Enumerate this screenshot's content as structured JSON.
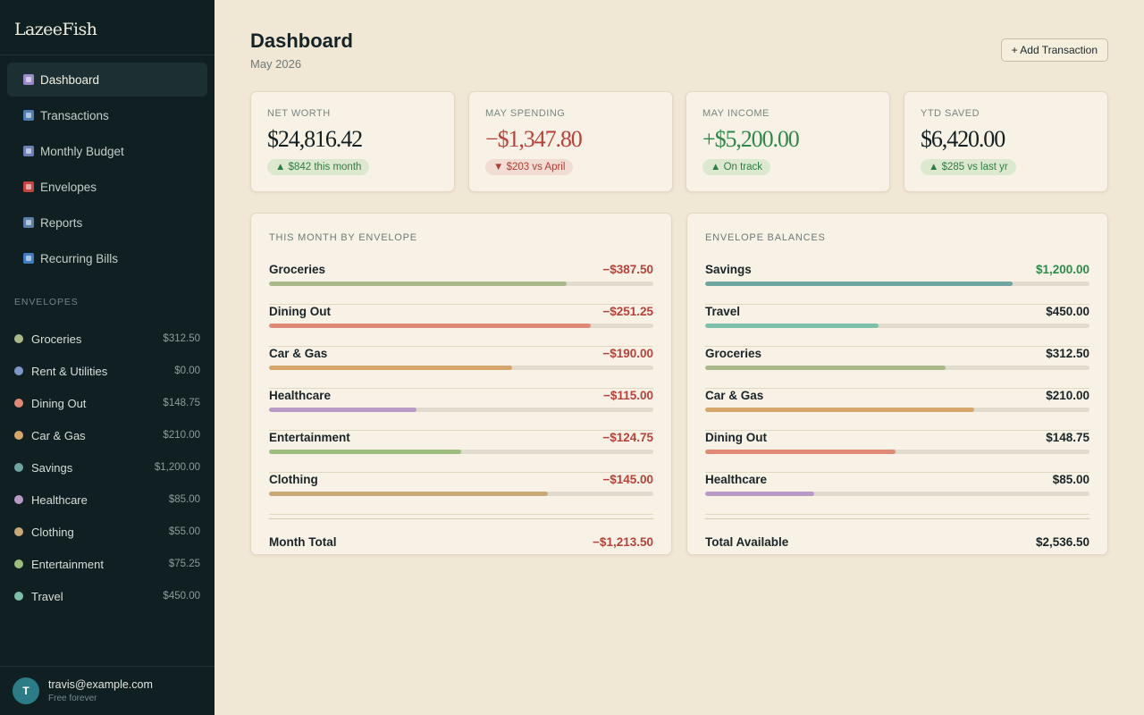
{
  "app": {
    "name": "LazeeFish"
  },
  "nav": {
    "items": [
      {
        "label": "Dashboard",
        "icon": "bar-chart-icon",
        "color": "#9b8ac9",
        "active": true
      },
      {
        "label": "Transactions",
        "icon": "credit-card-icon",
        "color": "#4f7fb0",
        "active": false
      },
      {
        "label": "Monthly Budget",
        "icon": "calendar-icon",
        "color": "#6c7fb6",
        "active": false
      },
      {
        "label": "Envelopes",
        "icon": "target-icon",
        "color": "#c6453f",
        "active": false
      },
      {
        "label": "Reports",
        "icon": "line-chart-icon",
        "color": "#5a7fa8",
        "active": false
      },
      {
        "label": "Recurring Bills",
        "icon": "repeat-icon",
        "color": "#3f7dbf",
        "active": false
      }
    ]
  },
  "envelopes": {
    "heading": "ENVELOPES",
    "items": [
      {
        "name": "Groceries",
        "amount": "$312.50",
        "color": "#a9b98a"
      },
      {
        "name": "Rent & Utilities",
        "amount": "$0.00",
        "color": "#7d97c7"
      },
      {
        "name": "Dining Out",
        "amount": "$148.75",
        "color": "#e08a76"
      },
      {
        "name": "Car & Gas",
        "amount": "$210.00",
        "color": "#d6a66a"
      },
      {
        "name": "Savings",
        "amount": "$1,200.00",
        "color": "#6fa5a0"
      },
      {
        "name": "Healthcare",
        "amount": "$85.00",
        "color": "#b99ac6"
      },
      {
        "name": "Clothing",
        "amount": "$55.00",
        "color": "#c9a878"
      },
      {
        "name": "Entertainment",
        "amount": "$75.25",
        "color": "#9cbd7c"
      },
      {
        "name": "Travel",
        "amount": "$450.00",
        "color": "#7cc0ac"
      }
    ]
  },
  "user": {
    "initial": "T",
    "email": "travis@example.com",
    "plan": "Free forever"
  },
  "header": {
    "title": "Dashboard",
    "subtitle": "May 2026",
    "add_button": "+ Add Transaction"
  },
  "stats": [
    {
      "label": "NET WORTH",
      "value": "$24,816.42",
      "tone": "",
      "badge": "▲ $842 this month",
      "badge_tone": "up"
    },
    {
      "label": "MAY SPENDING",
      "value": "−$1,347.80",
      "tone": "neg",
      "badge": "▼ $203 vs April",
      "badge_tone": "down"
    },
    {
      "label": "MAY INCOME",
      "value": "+$5,200.00",
      "tone": "pos",
      "badge": "▲ On track",
      "badge_tone": "up"
    },
    {
      "label": "YTD SAVED",
      "value": "$6,420.00",
      "tone": "",
      "badge": "▲ $285 vs last yr",
      "badge_tone": "up"
    }
  ],
  "spending": {
    "title": "THIS MONTH BY ENVELOPE",
    "rows": [
      {
        "name": "Groceries",
        "amount": "−$387.50",
        "tone": "neg",
        "progress": 0.775,
        "color": "#a9b98a"
      },
      {
        "name": "Dining Out",
        "amount": "−$251.25",
        "tone": "neg",
        "progress": 0.837,
        "color": "#e08a76"
      },
      {
        "name": "Car & Gas",
        "amount": "−$190.00",
        "tone": "neg",
        "progress": 0.633,
        "color": "#d6a66a"
      },
      {
        "name": "Healthcare",
        "amount": "−$115.00",
        "tone": "neg",
        "progress": 0.383,
        "color": "#b99ac6"
      },
      {
        "name": "Entertainment",
        "amount": "−$124.75",
        "tone": "neg",
        "progress": 0.5,
        "color": "#9cbd7c"
      },
      {
        "name": "Clothing",
        "amount": "−$145.00",
        "tone": "neg",
        "progress": 0.725,
        "color": "#c9a878"
      }
    ],
    "total_label": "Month Total",
    "total_amount": "−$1,213.50",
    "total_tone": "neg"
  },
  "balances": {
    "title": "ENVELOPE BALANCES",
    "rows": [
      {
        "name": "Savings",
        "amount": "$1,200.00",
        "tone": "pos",
        "progress": 0.8,
        "color": "#6fa5a0"
      },
      {
        "name": "Travel",
        "amount": "$450.00",
        "tone": "",
        "progress": 0.45,
        "color": "#7cc0ac"
      },
      {
        "name": "Groceries",
        "amount": "$312.50",
        "tone": "",
        "progress": 0.625,
        "color": "#a9b98a"
      },
      {
        "name": "Car & Gas",
        "amount": "$210.00",
        "tone": "",
        "progress": 0.7,
        "color": "#d6a66a"
      },
      {
        "name": "Dining Out",
        "amount": "$148.75",
        "tone": "",
        "progress": 0.496,
        "color": "#e08a76"
      },
      {
        "name": "Healthcare",
        "amount": "$85.00",
        "tone": "",
        "progress": 0.283,
        "color": "#b99ac6"
      }
    ],
    "total_label": "Total Available",
    "total_amount": "$2,536.50",
    "total_tone": ""
  }
}
